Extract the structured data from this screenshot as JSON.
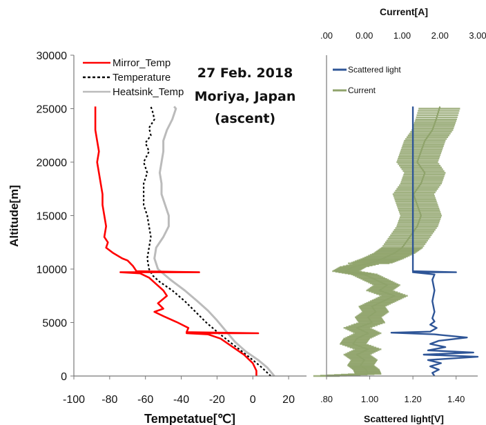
{
  "chart_data": [
    {
      "type": "line",
      "xlabel": "Tempetatue[℃]",
      "ylabel": "Altitude[m]",
      "xlim": [
        -100,
        30
      ],
      "ylim": [
        0,
        30000
      ],
      "x_ticks": [
        "-100",
        "-80",
        "-60",
        "-40",
        "-20",
        "0",
        "20"
      ],
      "y_ticks": [
        "0",
        "5000",
        "10000",
        "15000",
        "20000",
        "25000",
        "30000"
      ],
      "annotation": [
        "27 Feb. 2018",
        "Moriya, Japan",
        "(ascent)"
      ],
      "legend_position": "top-left",
      "grid": false,
      "series": [
        {
          "name": "Mirror_Temp",
          "color": "#ff0000",
          "style": "solid",
          "points": [
            [
              2,
              0
            ],
            [
              2,
              500
            ],
            [
              0,
              1200
            ],
            [
              -5,
              2000
            ],
            [
              -12,
              2800
            ],
            [
              -18,
              3500
            ],
            [
              -25,
              3900
            ],
            [
              -37,
              4000
            ],
            [
              3,
              4000
            ],
            [
              -37,
              4100
            ],
            [
              -36,
              4500
            ],
            [
              -42,
              5000
            ],
            [
              -50,
              5600
            ],
            [
              -55,
              6000
            ],
            [
              -50,
              6300
            ],
            [
              -53,
              6800
            ],
            [
              -48,
              7500
            ],
            [
              -50,
              8000
            ],
            [
              -54,
              8600
            ],
            [
              -58,
              9200
            ],
            [
              -63,
              9600
            ],
            [
              -74,
              9700
            ],
            [
              -30,
              9700
            ],
            [
              -65,
              9800
            ],
            [
              -67,
              10300
            ],
            [
              -70,
              10800
            ],
            [
              -73,
              11000
            ],
            [
              -78,
              11500
            ],
            [
              -82,
              12000
            ],
            [
              -81,
              12500
            ],
            [
              -83,
              13000
            ],
            [
              -82,
              14000
            ],
            [
              -83,
              15000
            ],
            [
              -84,
              16000
            ],
            [
              -84,
              17000
            ],
            [
              -85,
              18000
            ],
            [
              -86,
              19000
            ],
            [
              -87,
              20000
            ],
            [
              -86,
              21000
            ],
            [
              -87,
              22000
            ],
            [
              -88,
              23000
            ],
            [
              -88,
              24000
            ],
            [
              -88,
              25200
            ]
          ]
        },
        {
          "name": "Temperature",
          "color": "#000000",
          "style": "dashed",
          "points": [
            [
              10,
              0
            ],
            [
              5,
              800
            ],
            [
              0,
              1500
            ],
            [
              -6,
              2300
            ],
            [
              -13,
              3200
            ],
            [
              -19,
              4000
            ],
            [
              -26,
              5000
            ],
            [
              -32,
              6000
            ],
            [
              -38,
              7000
            ],
            [
              -45,
              8000
            ],
            [
              -52,
              8800
            ],
            [
              -56,
              9400
            ],
            [
              -58,
              10000
            ],
            [
              -59,
              11000
            ],
            [
              -58,
              12000
            ],
            [
              -57,
              13000
            ],
            [
              -58,
              14000
            ],
            [
              -59,
              15000
            ],
            [
              -61,
              16000
            ],
            [
              -61,
              17000
            ],
            [
              -61,
              18000
            ],
            [
              -59,
              19000
            ],
            [
              -61,
              20000
            ],
            [
              -58,
              21000
            ],
            [
              -60,
              21800
            ],
            [
              -57,
              22500
            ],
            [
              -58,
              23200
            ],
            [
              -55,
              24000
            ],
            [
              -56,
              24700
            ],
            [
              -57,
              25200
            ]
          ]
        },
        {
          "name": "Heatsink_Temp",
          "color": "#bbbbbb",
          "style": "solid",
          "points": [
            [
              12,
              0
            ],
            [
              8,
              800
            ],
            [
              3,
              1500
            ],
            [
              -4,
              2300
            ],
            [
              -10,
              3200
            ],
            [
              -15,
              4200
            ],
            [
              -20,
              5200
            ],
            [
              -25,
              6100
            ],
            [
              -31,
              7000
            ],
            [
              -38,
              8000
            ],
            [
              -46,
              9000
            ],
            [
              -53,
              10000
            ],
            [
              -55,
              11000
            ],
            [
              -54,
              12000
            ],
            [
              -50,
              13000
            ],
            [
              -47,
              14000
            ],
            [
              -47,
              15000
            ],
            [
              -49,
              16000
            ],
            [
              -51,
              17000
            ],
            [
              -51,
              18000
            ],
            [
              -52,
              19000
            ],
            [
              -51,
              20000
            ],
            [
              -50,
              21000
            ],
            [
              -50,
              22000
            ],
            [
              -48,
              23000
            ],
            [
              -45,
              24000
            ],
            [
              -43,
              25000
            ],
            [
              -44,
              25200
            ]
          ]
        }
      ]
    },
    {
      "type": "line",
      "xlabel": "Scattered light[V]",
      "x2label": "Current[A]",
      "xlim": [
        0.8,
        1.5
      ],
      "x2lim": [
        -1.0,
        3.0
      ],
      "ylim": [
        0,
        30000
      ],
      "x_ticks": [
        ".80",
        "1.00",
        "1.20",
        "1.40"
      ],
      "x2_ticks": [
        ".00",
        "0.00",
        "1.00",
        "2.00",
        "3.00"
      ],
      "legend_position": "top-left",
      "grid": false,
      "series": [
        {
          "name": "Scattered light",
          "axis": "bottom",
          "color": "#2e5597",
          "points": [
            [
              1.3,
              0
            ],
            [
              1.29,
              300
            ],
            [
              1.32,
              600
            ],
            [
              1.28,
              900
            ],
            [
              1.33,
              1200
            ],
            [
              1.27,
              1500
            ],
            [
              1.5,
              1800
            ],
            [
              1.25,
              2000
            ],
            [
              1.48,
              2200
            ],
            [
              1.27,
              2400
            ],
            [
              1.35,
              2700
            ],
            [
              1.28,
              3000
            ],
            [
              1.32,
              3300
            ],
            [
              1.45,
              3600
            ],
            [
              1.3,
              3900
            ],
            [
              1.1,
              4050
            ],
            [
              1.28,
              4150
            ],
            [
              1.31,
              4500
            ],
            [
              1.28,
              4800
            ],
            [
              1.3,
              5100
            ],
            [
              1.29,
              5400
            ],
            [
              1.3,
              6000
            ],
            [
              1.29,
              7000
            ],
            [
              1.3,
              8000
            ],
            [
              1.29,
              9000
            ],
            [
              1.3,
              9500
            ],
            [
              1.2,
              9700
            ],
            [
              1.4,
              9700
            ],
            [
              1.2,
              9800
            ],
            [
              1.2,
              15000
            ],
            [
              1.2,
              20000
            ],
            [
              1.2,
              25200
            ]
          ]
        },
        {
          "name": "Current",
          "axis": "top",
          "color": "#8fa36b",
          "points": [
            [
              -1.0,
              0
            ],
            [
              0.1,
              200
            ],
            [
              0.05,
              600
            ],
            [
              -0.1,
              1000
            ],
            [
              0.0,
              1500
            ],
            [
              -0.2,
              2000
            ],
            [
              0.1,
              2500
            ],
            [
              -0.3,
              3000
            ],
            [
              -0.2,
              3500
            ],
            [
              0.1,
              4000
            ],
            [
              -0.2,
              4500
            ],
            [
              0.2,
              5000
            ],
            [
              0.1,
              5500
            ],
            [
              0.3,
              6000
            ],
            [
              0.2,
              6500
            ],
            [
              0.5,
              7000
            ],
            [
              0.8,
              7500
            ],
            [
              0.4,
              8000
            ],
            [
              0.6,
              8500
            ],
            [
              0.3,
              9000
            ],
            [
              0.0,
              9500
            ],
            [
              -0.5,
              9800
            ],
            [
              -0.3,
              10200
            ],
            [
              0.2,
              10600
            ],
            [
              0.5,
              11000
            ],
            [
              0.8,
              11500
            ],
            [
              1.0,
              12000
            ],
            [
              1.2,
              13000
            ],
            [
              1.4,
              14000
            ],
            [
              1.5,
              15000
            ],
            [
              1.4,
              16000
            ],
            [
              1.3,
              17000
            ],
            [
              1.5,
              18000
            ],
            [
              1.6,
              19000
            ],
            [
              1.4,
              20000
            ],
            [
              1.5,
              21000
            ],
            [
              1.6,
              22000
            ],
            [
              1.8,
              23000
            ],
            [
              1.9,
              24000
            ],
            [
              2.0,
              25200
            ]
          ]
        }
      ]
    }
  ]
}
